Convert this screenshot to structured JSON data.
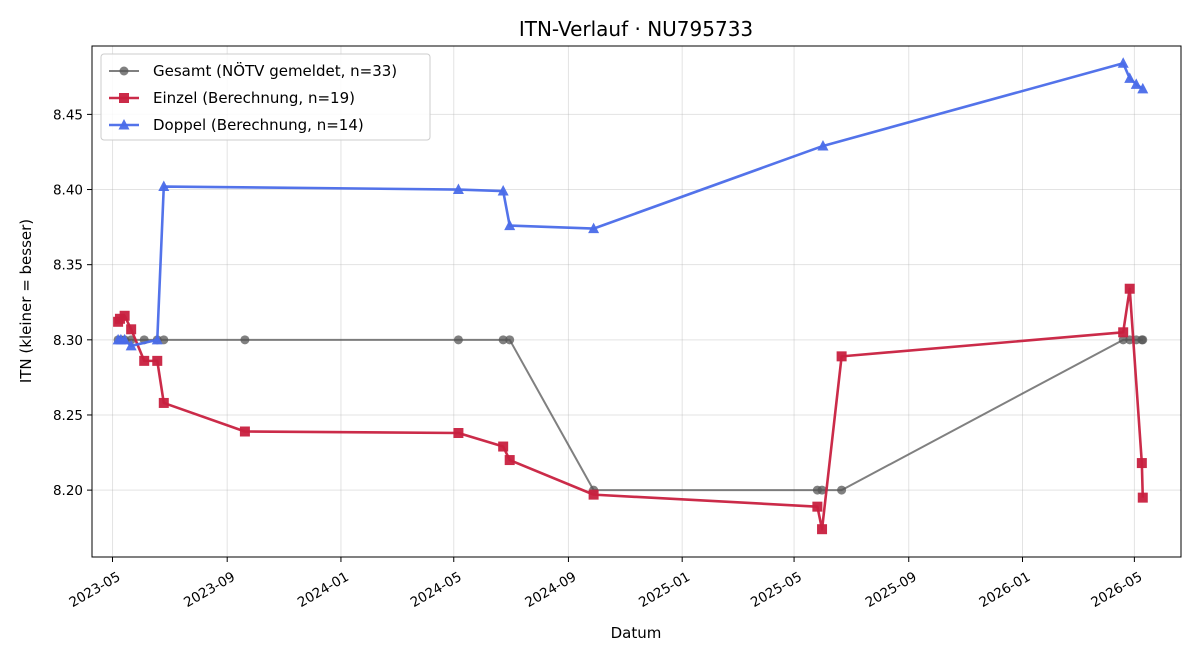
{
  "chart_data": {
    "type": "line",
    "title": "ITN-Verlauf · NU795733",
    "xlabel": "Datum",
    "ylabel": "ITN  (kleiner = besser)",
    "x_axis_type": "date",
    "xlim": [
      "2023-04-09",
      "2026-06-20"
    ],
    "ylim": [
      8.1555,
      8.4955
    ],
    "x_ticks": [
      "2023-05-01",
      "2023-09-01",
      "2024-01-01",
      "2024-05-01",
      "2024-09-01",
      "2025-01-01",
      "2025-05-01",
      "2025-09-01",
      "2026-01-01",
      "2026-05-01"
    ],
    "x_tick_labels": [
      "2023-05",
      "2023-09",
      "2024-01",
      "2024-05",
      "2024-09",
      "2025-01",
      "2025-05",
      "2025-09",
      "2026-01",
      "2026-05"
    ],
    "y_ticks": [
      8.2,
      8.25,
      8.3,
      8.35,
      8.4,
      8.45
    ],
    "y_tick_labels": [
      "8.20",
      "8.25",
      "8.30",
      "8.35",
      "8.40",
      "8.45"
    ],
    "grid": true,
    "legend_position": "top-left",
    "series": [
      {
        "name": "Gesamt (NÖTV gemeldet, n=33)",
        "color": "#555555",
        "marker": "circle",
        "points": [
          {
            "x": "2023-05-07",
            "y": 8.3
          },
          {
            "x": "2023-05-10",
            "y": 8.3
          },
          {
            "x": "2023-05-14",
            "y": 8.3
          },
          {
            "x": "2023-05-21",
            "y": 8.3
          },
          {
            "x": "2023-06-04",
            "y": 8.3
          },
          {
            "x": "2023-06-18",
            "y": 8.3
          },
          {
            "x": "2023-06-25",
            "y": 8.3
          },
          {
            "x": "2023-09-20",
            "y": 8.3
          },
          {
            "x": "2024-05-06",
            "y": 8.3
          },
          {
            "x": "2024-06-23",
            "y": 8.3
          },
          {
            "x": "2024-06-30",
            "y": 8.3
          },
          {
            "x": "2024-09-28",
            "y": 8.2
          },
          {
            "x": "2025-05-26",
            "y": 8.2
          },
          {
            "x": "2025-05-31",
            "y": 8.2
          },
          {
            "x": "2025-06-21",
            "y": 8.2
          },
          {
            "x": "2026-04-19",
            "y": 8.3
          },
          {
            "x": "2026-04-26",
            "y": 8.3
          },
          {
            "x": "2026-05-03",
            "y": 8.3
          },
          {
            "x": "2026-05-09",
            "y": 8.3
          },
          {
            "x": "2026-05-10",
            "y": 8.3
          }
        ]
      },
      {
        "name": "Einzel (Berechnung, n=19)",
        "color": "#c8203f",
        "marker": "square",
        "points": [
          {
            "x": "2023-05-07",
            "y": 8.312
          },
          {
            "x": "2023-05-09",
            "y": 8.314
          },
          {
            "x": "2023-05-14",
            "y": 8.316
          },
          {
            "x": "2023-05-21",
            "y": 8.307
          },
          {
            "x": "2023-06-04",
            "y": 8.286
          },
          {
            "x": "2023-06-18",
            "y": 8.286
          },
          {
            "x": "2023-06-25",
            "y": 8.258
          },
          {
            "x": "2023-09-20",
            "y": 8.239
          },
          {
            "x": "2024-05-06",
            "y": 8.238
          },
          {
            "x": "2024-06-23",
            "y": 8.229
          },
          {
            "x": "2024-06-30",
            "y": 8.22
          },
          {
            "x": "2024-09-28",
            "y": 8.197
          },
          {
            "x": "2025-05-26",
            "y": 8.189
          },
          {
            "x": "2025-05-31",
            "y": 8.174
          },
          {
            "x": "2025-06-21",
            "y": 8.289
          },
          {
            "x": "2026-04-19",
            "y": 8.305
          },
          {
            "x": "2026-04-26",
            "y": 8.334
          },
          {
            "x": "2026-05-09",
            "y": 8.218
          },
          {
            "x": "2026-05-10",
            "y": 8.195
          }
        ]
      },
      {
        "name": "Doppel (Berechnung, n=14)",
        "color": "#4a6be9",
        "marker": "triangle",
        "points": [
          {
            "x": "2023-05-07",
            "y": 8.3
          },
          {
            "x": "2023-05-10",
            "y": 8.3
          },
          {
            "x": "2023-05-14",
            "y": 8.3
          },
          {
            "x": "2023-05-21",
            "y": 8.296
          },
          {
            "x": "2023-06-18",
            "y": 8.3
          },
          {
            "x": "2023-06-25",
            "y": 8.402
          },
          {
            "x": "2024-05-06",
            "y": 8.4
          },
          {
            "x": "2024-06-23",
            "y": 8.399
          },
          {
            "x": "2024-06-30",
            "y": 8.376
          },
          {
            "x": "2024-09-28",
            "y": 8.374
          },
          {
            "x": "2025-06-01",
            "y": 8.429
          },
          {
            "x": "2026-04-19",
            "y": 8.484
          },
          {
            "x": "2026-04-26",
            "y": 8.474
          },
          {
            "x": "2026-05-03",
            "y": 8.47
          },
          {
            "x": "2026-05-10",
            "y": 8.467
          }
        ]
      }
    ]
  }
}
